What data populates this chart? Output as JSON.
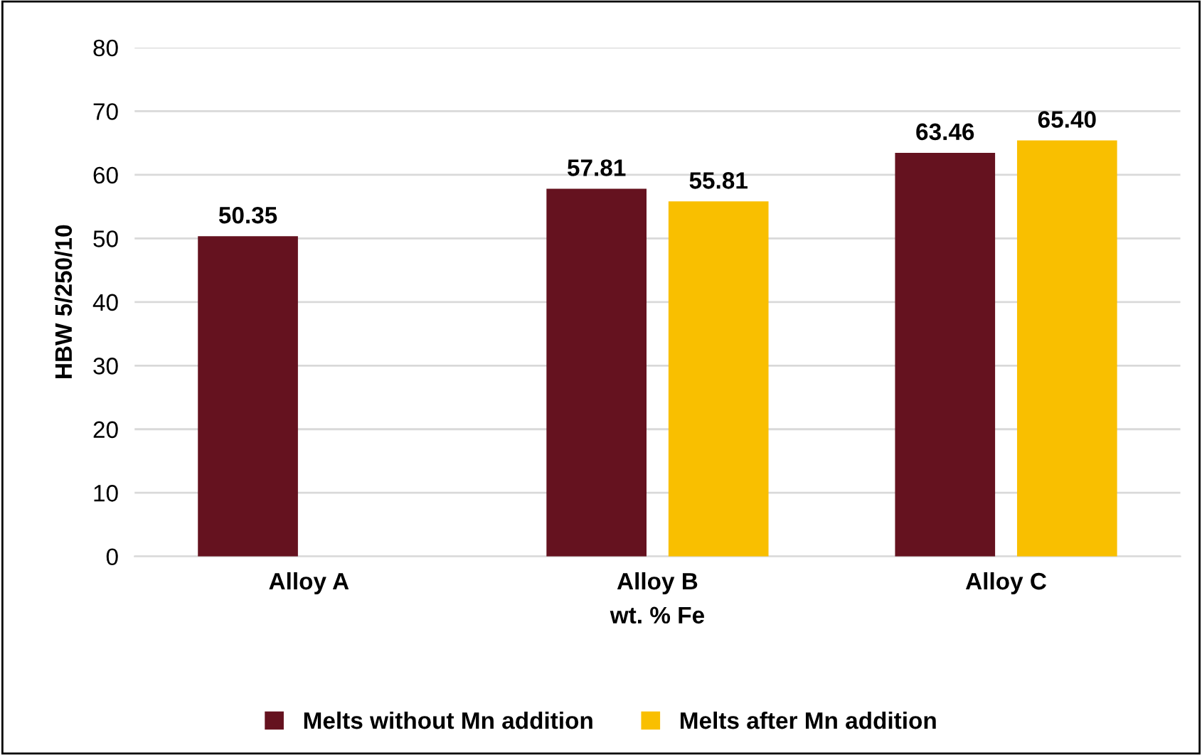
{
  "chart_data": {
    "type": "bar",
    "xlabel": "wt. % Fe",
    "ylabel": "HBW 5/250/10",
    "categories": [
      "Alloy A",
      "Alloy B",
      "Alloy C"
    ],
    "series": [
      {
        "name": "Melts without Mn addition",
        "color": "#65121f",
        "values": [
          50.35,
          57.81,
          63.46
        ],
        "value_labels": [
          "50.35",
          "57.81",
          "63.46"
        ]
      },
      {
        "name": "Melts after Mn addition",
        "color": "#f9bf00",
        "values": [
          null,
          55.81,
          65.4
        ],
        "value_labels": [
          null,
          "55.81",
          "65.40"
        ]
      }
    ],
    "ylim": [
      0,
      80
    ],
    "yticks": [
      0,
      10,
      20,
      30,
      40,
      50,
      60,
      70,
      80
    ],
    "grid": "y",
    "legend": "bottom"
  }
}
